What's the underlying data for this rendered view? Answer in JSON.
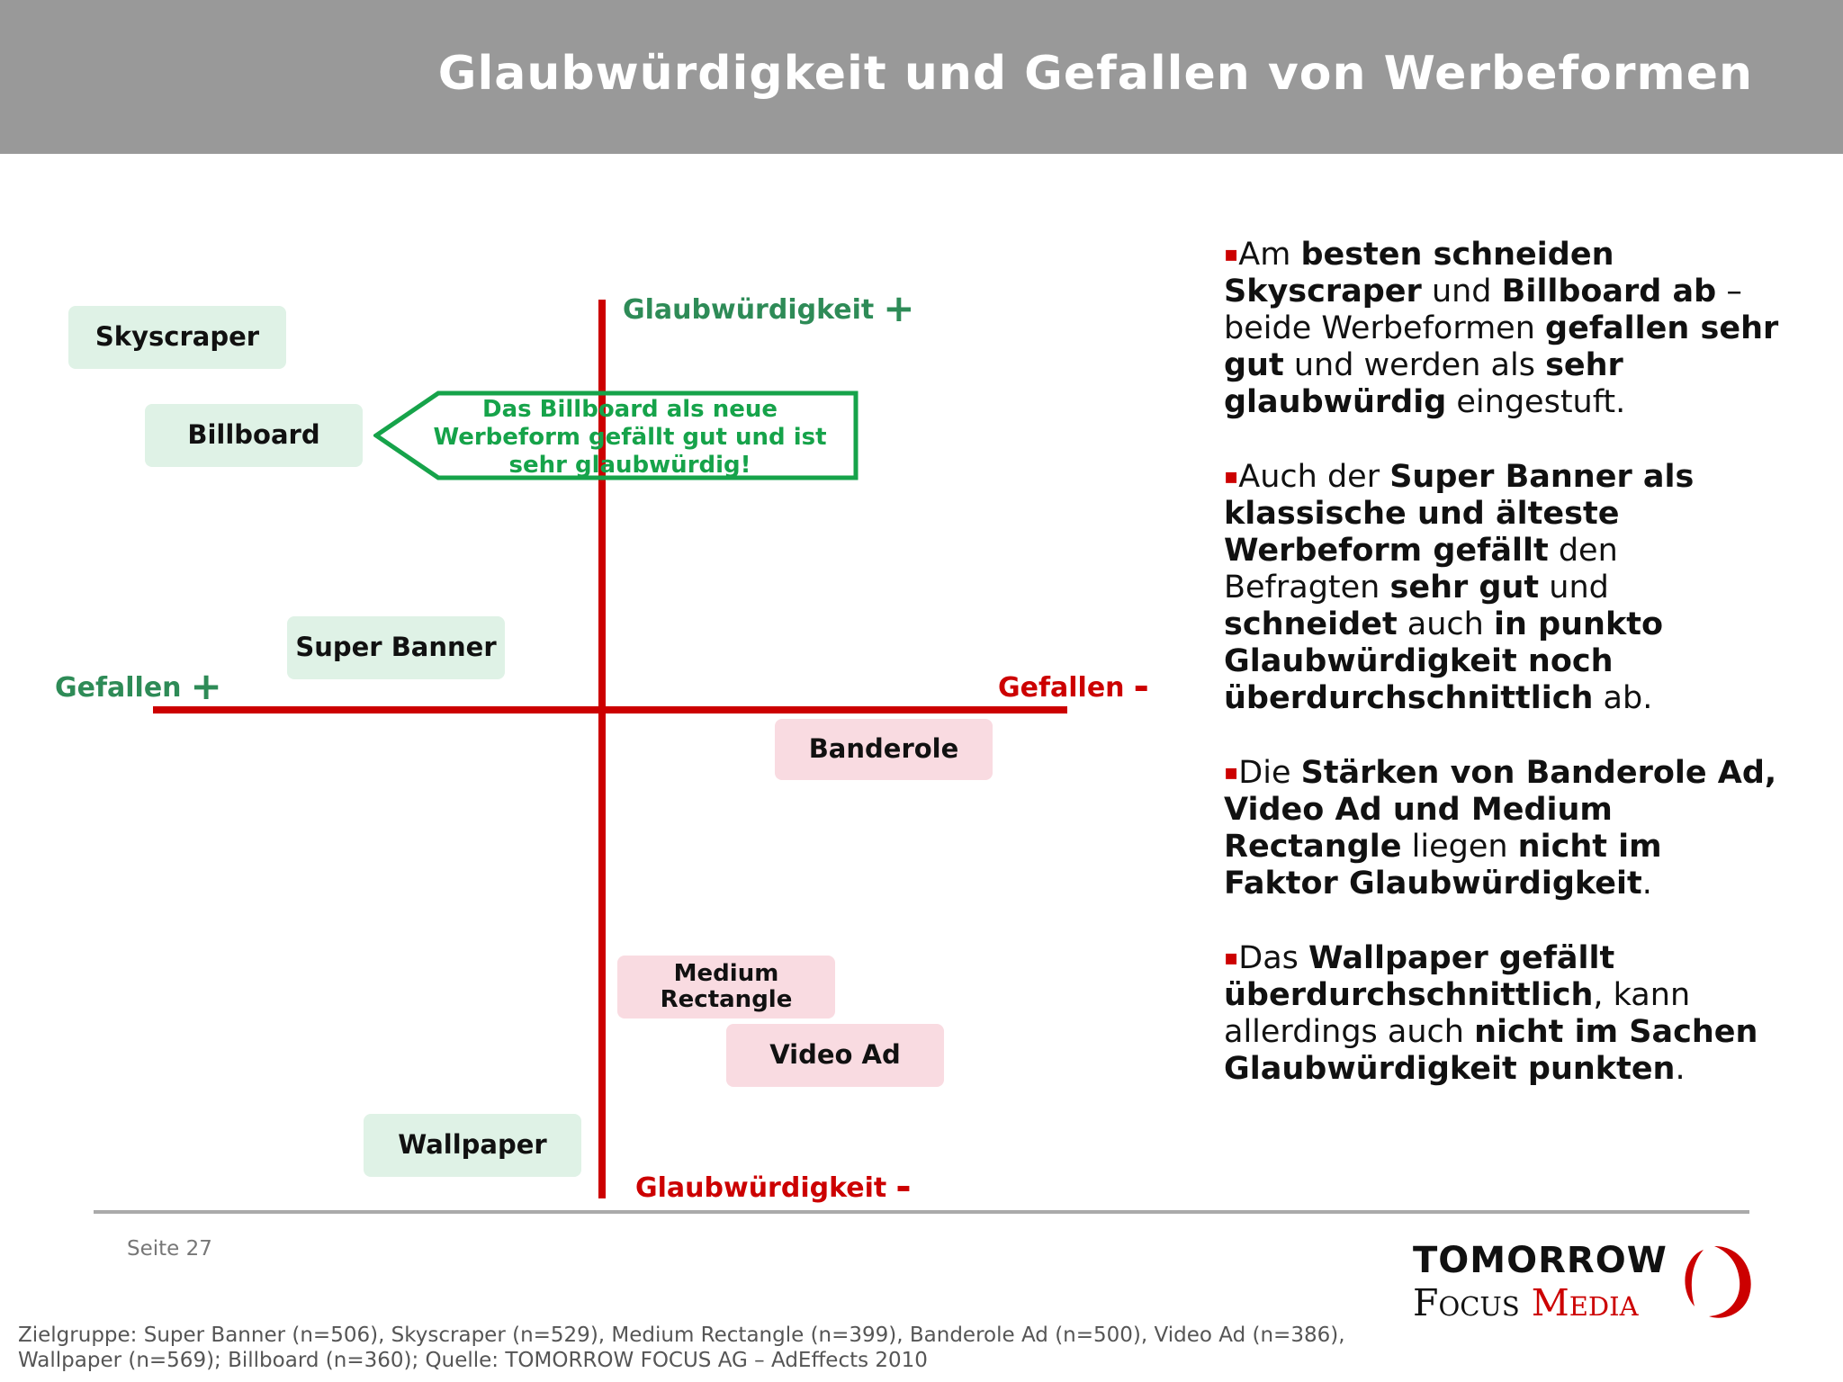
{
  "header": {
    "title": "Glaubwürdigkeit und Gefallen von Werbeformen"
  },
  "chart": {
    "axis_top": {
      "text": "Glaubwürdigkeit",
      "sign": "+"
    },
    "axis_bottom": {
      "text": "Glaubwürdigkeit",
      "sign": "-"
    },
    "axis_left": {
      "text": "Gefallen",
      "sign": "+"
    },
    "axis_right": {
      "text": "Gefallen",
      "sign": "-"
    },
    "items": [
      {
        "label": "Skyscraper",
        "status": "positive"
      },
      {
        "label": "Billboard",
        "status": "positive"
      },
      {
        "label": "Super Banner",
        "status": "positive"
      },
      {
        "label": "Banderole",
        "status": "negative"
      },
      {
        "label": "Medium Rectangle",
        "status": "negative"
      },
      {
        "label": "Video Ad",
        "status": "negative"
      },
      {
        "label": "Wallpaper",
        "status": "positive"
      }
    ],
    "callout": {
      "line1": "Das Billboard als neue",
      "line2": "Werbeform gefällt gut und ist",
      "line3": "sehr glaubwürdig!"
    }
  },
  "bullets": [
    [
      {
        "t": "▪",
        "style": "mark"
      },
      {
        "t": "Am "
      },
      {
        "t": "besten schneiden Skyscraper",
        "b": true
      },
      {
        "t": " und "
      },
      {
        "t": "Billboard ab",
        "b": true
      },
      {
        "t": " – beide Werbeformen "
      },
      {
        "t": "gefallen sehr gut",
        "b": true
      },
      {
        "t": " und werden als "
      },
      {
        "t": "sehr glaubwürdig",
        "b": true
      },
      {
        "t": " eingestuft."
      }
    ],
    [
      {
        "t": "▪",
        "style": "mark"
      },
      {
        "t": "Auch der "
      },
      {
        "t": "Super Banner als klassische und älteste Werbeform gefällt",
        "b": true
      },
      {
        "t": " den Befragten "
      },
      {
        "t": "sehr gut",
        "b": true
      },
      {
        "t": " und "
      },
      {
        "t": "schneidet",
        "b": true
      },
      {
        "t": " auch "
      },
      {
        "t": "in punkto Glaubwürdigkeit noch überdurchschnittlich",
        "b": true
      },
      {
        "t": " ab."
      }
    ],
    [
      {
        "t": "▪",
        "style": "mark"
      },
      {
        "t": "Die "
      },
      {
        "t": "Stärken von Banderole Ad, Video Ad und Medium Rectangle",
        "b": true
      },
      {
        "t": " liegen "
      },
      {
        "t": "nicht im Faktor Glaubwürdigkeit",
        "b": true
      },
      {
        "t": "."
      }
    ],
    [
      {
        "t": "▪",
        "style": "mark"
      },
      {
        "t": "Das "
      },
      {
        "t": "Wallpaper gefällt überdurchschnittlich",
        "b": true
      },
      {
        "t": ", kann allerdings auch "
      },
      {
        "t": "nicht im Sachen Glaubwürdigkeit punkten",
        "b": true
      },
      {
        "t": "."
      }
    ]
  ],
  "footer": {
    "page": "Seite 27",
    "logo_line1": "TOMORROW",
    "logo_focus": "Focus",
    "logo_media": "Media",
    "footnote_line1": "Zielgruppe: Super Banner (n=506), Skyscraper (n=529), Medium Rectangle (n=399), Banderole Ad (n=500), Video Ad (n=386),",
    "footnote_line2": "Wallpaper (n=569); Billboard (n=360); Quelle: TOMORROW FOCUS AG – AdEffects 2010"
  },
  "colors": {
    "header_bg": "#999999",
    "axis": "#cc0000",
    "positive_label": "#2e8b57",
    "negative_label": "#cc0000",
    "callout": "#16a34a",
    "positive_box": "#dff2e6",
    "negative_box": "#f9dbe1"
  }
}
